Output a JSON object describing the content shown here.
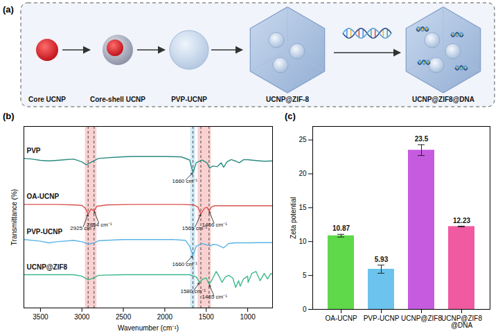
{
  "diagram": {
    "panel": "(a)",
    "steps": [
      "Core UCNP",
      "Core-shell UCNP",
      "PVP-UCNP",
      "UCNP@ZIF-8",
      "UCNP@ZIF8@DNA"
    ]
  },
  "chart_data": [
    {
      "panel": "(b)",
      "type": "line",
      "xlabel": "Wavenumber (cm⁻¹)",
      "ylabel": "Transmittance (%)",
      "xlim": [
        3700,
        700
      ],
      "xticks": [
        3500,
        3000,
        2500,
        2000,
        1500,
        1000
      ],
      "ylim": [
        0,
        100
      ],
      "tick_labels": "x",
      "series": [
        {
          "name": "PVP",
          "color": "#2a8c82",
          "x": [
            3700,
            3600,
            3500,
            3400,
            3300,
            3200,
            3100,
            3000,
            2950,
            2900,
            2800,
            2600,
            2400,
            2200,
            2000,
            1800,
            1700,
            1660,
            1620,
            1550,
            1490,
            1460,
            1420,
            1370,
            1320,
            1290,
            1250,
            1200,
            1150,
            1100,
            1050,
            1000,
            900,
            800,
            700
          ],
          "values": [
            82.4,
            82,
            81.3,
            81,
            81.3,
            81.7,
            82,
            80.5,
            78.9,
            80,
            82.4,
            83,
            83.5,
            83.5,
            83.5,
            83.2,
            81.5,
            74.6,
            80,
            81.5,
            79.9,
            77,
            78.2,
            77.8,
            80,
            77.5,
            80.5,
            81.7,
            81,
            80,
            81.7,
            81.7,
            81.2,
            80.8,
            81
          ]
        },
        {
          "name": "OA-UCNP",
          "color": "#d9534f",
          "x": [
            3700,
            3500,
            3300,
            3100,
            3000,
            2960,
            2925,
            2890,
            2854,
            2820,
            2700,
            2400,
            2100,
            1800,
            1650,
            1600,
            1565,
            1520,
            1490,
            1466,
            1440,
            1400,
            1300,
            1200,
            1100,
            1000,
            900,
            800,
            700
          ],
          "values": [
            57,
            57,
            57,
            56.8,
            56.5,
            55,
            51.8,
            54.5,
            53.5,
            56,
            56.8,
            57,
            57,
            57,
            56.8,
            55.5,
            51.8,
            55,
            55.5,
            53.5,
            55.5,
            56.3,
            56.3,
            56.3,
            56.3,
            56.3,
            56.3,
            56.3,
            56.3
          ]
        },
        {
          "name": "PVP-UCNP",
          "color": "#5ab4e5",
          "x": [
            3700,
            3500,
            3400,
            3300,
            3100,
            3000,
            2925,
            2854,
            2800,
            2500,
            2200,
            1900,
            1750,
            1700,
            1660,
            1620,
            1550,
            1450,
            1420,
            1370,
            1290,
            1230,
            1150,
            1000,
            850,
            700
          ],
          "values": [
            37.7,
            36.8,
            35.9,
            36.5,
            37.2,
            36.5,
            35.2,
            35.8,
            37,
            37.7,
            37.7,
            37.7,
            37.2,
            34,
            28.9,
            34,
            35.5,
            34.2,
            35,
            34.8,
            33.1,
            35.5,
            35.9,
            35.9,
            36,
            36
          ]
        },
        {
          "name": "UCNP@ZIF8",
          "color": "#3cb88a",
          "x": [
            3700,
            3500,
            3300,
            3100,
            3000,
            2925,
            2854,
            2800,
            2500,
            2200,
            1900,
            1700,
            1620,
            1580,
            1540,
            1500,
            1465,
            1430,
            1420,
            1380,
            1340,
            1310,
            1270,
            1230,
            1180,
            1145,
            1110,
            1090,
            1050,
            1000,
            995,
            950,
            900,
            850,
            800,
            760,
            720,
            700
          ],
          "values": [
            18.3,
            18.3,
            18.3,
            18.3,
            17.5,
            15.5,
            16.5,
            18,
            18.3,
            18.3,
            18.3,
            18.3,
            17,
            14.1,
            16,
            16.5,
            13,
            15.5,
            16.5,
            20.1,
            17,
            14.1,
            17,
            18,
            16.5,
            11.3,
            15,
            12,
            16,
            17.5,
            14,
            19,
            20.1,
            15,
            19,
            16,
            19,
            18.5
          ]
        }
      ],
      "bands": [
        {
          "x": [
            2960,
            2820
          ],
          "color": "#f4a3a3"
        },
        {
          "x": [
            1690,
            1630
          ],
          "color": "#a9d8f2"
        },
        {
          "x": [
            1600,
            1440
          ],
          "color": "#f4a3a3"
        }
      ],
      "reference_lines": [
        2925,
        2854,
        1660,
        1565,
        1466
      ],
      "annotations": [
        {
          "text": "1660 cm⁻¹",
          "x": 1660,
          "y": 74.6,
          "text_x": 1760,
          "text_y": 70
        },
        {
          "text": "2925 cm⁻¹",
          "x": 2925,
          "y": 51.8,
          "text_x": 2990,
          "text_y": 44
        },
        {
          "text": "2854 cm⁻¹",
          "x": 2854,
          "y": 53.5,
          "text_x": 2790,
          "text_y": 46
        },
        {
          "text": "1565 cm⁻¹",
          "x": 1565,
          "y": 51.8,
          "text_x": 1640,
          "text_y": 44
        },
        {
          "text": "1466 cm⁻¹",
          "x": 1466,
          "y": 53.5,
          "text_x": 1400,
          "text_y": 46
        },
        {
          "text": "1660 cm⁻¹",
          "x": 1660,
          "y": 28.9,
          "text_x": 1760,
          "text_y": 24
        },
        {
          "text": "1580 cm⁻¹",
          "x": 1580,
          "y": 14.1,
          "text_x": 1660,
          "text_y": 9
        },
        {
          "text": "1465 cm⁻¹",
          "x": 1465,
          "y": 13.0,
          "text_x": 1400,
          "text_y": 6
        }
      ]
    },
    {
      "panel": "(c)",
      "type": "bar",
      "ylabel": "Zeta potential",
      "categories": [
        "OA-UCNP",
        "PVP-UCNP",
        "UCNP@ZIF8",
        "UCNP@ZIF8@DNA"
      ],
      "values": [
        10.87,
        5.93,
        23.5,
        12.23
      ],
      "error": [
        0.2,
        0.6,
        0.8,
        0.05
      ],
      "colors": [
        "#5fd94a",
        "#6cc3ee",
        "#c65be0",
        "#ef5aa0"
      ],
      "ylim": [
        0,
        27
      ],
      "yticks": [
        0,
        5,
        10,
        15,
        20,
        25
      ],
      "data_labels": true
    }
  ]
}
